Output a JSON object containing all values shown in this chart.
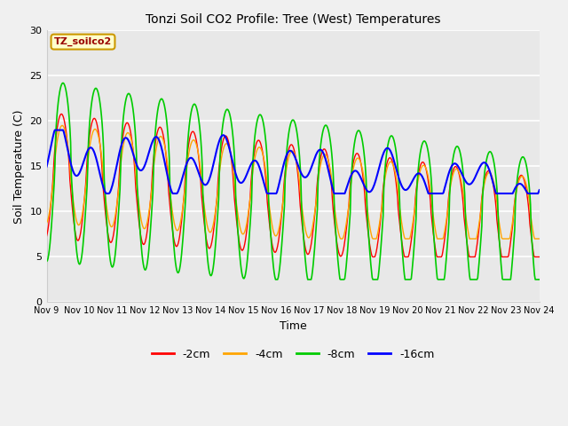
{
  "title": "Tonzi Soil CO2 Profile: Tree (West) Temperatures",
  "xlabel": "Time",
  "ylabel": "Soil Temperature (C)",
  "legend_label": "TZ_soilco2",
  "series_labels": [
    "-2cm",
    "-4cm",
    "-8cm",
    "-16cm"
  ],
  "series_colors": [
    "#ff0000",
    "#ffa500",
    "#00cc00",
    "#0000ff"
  ],
  "ylim": [
    0,
    30
  ],
  "plot_bg_color": "#e8e8e8",
  "yticks": [
    0,
    5,
    10,
    15,
    20,
    25,
    30
  ],
  "n_days": 15,
  "start_day": 9
}
